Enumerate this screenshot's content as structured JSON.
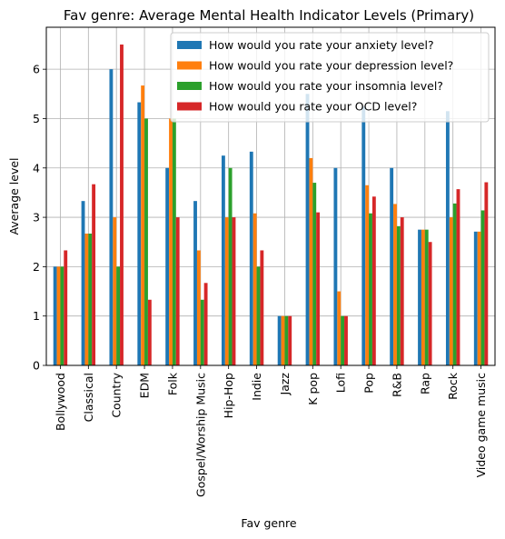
{
  "chart_data": {
    "type": "bar",
    "title": "Fav genre: Average Mental Health Indicator Levels (Primary)",
    "xlabel": "Fav genre",
    "ylabel": "Average level",
    "ylim": [
      0,
      6.85
    ],
    "yticks": [
      "0",
      "1",
      "2",
      "3",
      "4",
      "5",
      "6"
    ],
    "grid": true,
    "legend_position": "top-right",
    "categories": [
      "Bollywood",
      "Classical",
      "Country",
      "EDM",
      "Folk",
      "Gospel/Worship Music",
      "Hip-Hop",
      "Indie",
      "Jazz",
      "K pop",
      "Lofi",
      "Pop",
      "R&B",
      "Rap",
      "Rock",
      "Video game music"
    ],
    "series": [
      {
        "name": "How would you rate your anxiety level?",
        "color": "#1f77b4",
        "values": [
          2.0,
          3.33,
          6.0,
          5.33,
          4.0,
          3.33,
          4.25,
          4.33,
          1.0,
          5.5,
          4.0,
          5.25,
          4.0,
          2.75,
          5.15,
          2.71
        ]
      },
      {
        "name": "How would you rate your depression level?",
        "color": "#ff7f0e",
        "values": [
          2.0,
          2.67,
          3.0,
          5.67,
          5.0,
          2.33,
          3.0,
          3.08,
          1.0,
          4.2,
          1.5,
          3.65,
          3.27,
          2.75,
          3.0,
          2.71
        ]
      },
      {
        "name": "How would you rate your insomnia level?",
        "color": "#2ca02c",
        "values": [
          2.0,
          2.67,
          2.0,
          5.0,
          5.0,
          1.33,
          4.0,
          2.0,
          1.0,
          3.7,
          1.0,
          3.08,
          2.82,
          2.75,
          3.28,
          3.14
        ]
      },
      {
        "name": "How would you rate your OCD level?",
        "color": "#d62728",
        "values": [
          2.33,
          3.67,
          6.5,
          1.33,
          3.0,
          1.67,
          3.0,
          2.33,
          1.0,
          3.1,
          1.0,
          3.42,
          3.0,
          2.5,
          3.57,
          3.71
        ]
      }
    ]
  }
}
